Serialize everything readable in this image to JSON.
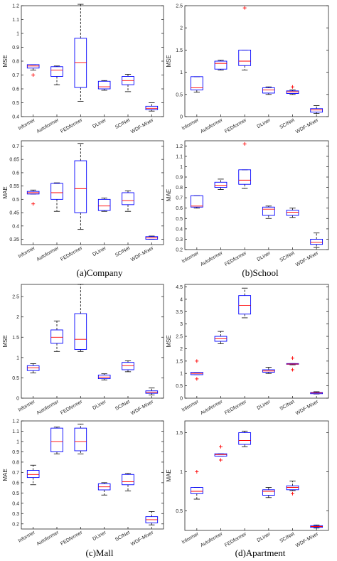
{
  "categories": [
    "Informer",
    "Autoformer",
    "FEDformer",
    "DLiner",
    "SCINet",
    "WDF-Mixer"
  ],
  "colors": {
    "box": "#0000ff",
    "median": "#ff0000",
    "whisker": "#000000",
    "outlier": "#ff0000",
    "axis": "#262626"
  },
  "captions": [
    "(a)Company",
    "(b)School",
    "(c)Mall",
    "(d)Apartment"
  ],
  "chart_data": [
    {
      "type": "box",
      "dataset": "Company",
      "ylabel": "MSE",
      "ylim": [
        0.4,
        1.2
      ],
      "yticks": [
        0.4,
        0.5,
        0.6,
        0.7,
        0.8,
        0.9,
        1,
        1.1,
        1.2
      ],
      "boxes": [
        {
          "category": "Informer",
          "whisker_low": 0.735,
          "q1": 0.75,
          "median": 0.765,
          "q3": 0.775,
          "whisker_high": 0.775,
          "outliers": [
            0.7
          ]
        },
        {
          "category": "Autoformer",
          "whisker_low": 0.63,
          "q1": 0.69,
          "median": 0.735,
          "q3": 0.76,
          "whisker_high": 0.765,
          "outliers": []
        },
        {
          "category": "FEDformer",
          "whisker_low": 0.51,
          "q1": 0.61,
          "median": 0.79,
          "q3": 0.965,
          "whisker_high": 1.21,
          "outliers": []
        },
        {
          "category": "DLiner",
          "whisker_low": 0.59,
          "q1": 0.6,
          "median": 0.615,
          "q3": 0.655,
          "whisker_high": 0.66,
          "outliers": []
        },
        {
          "category": "SCINet",
          "whisker_low": 0.58,
          "q1": 0.63,
          "median": 0.66,
          "q3": 0.69,
          "whisker_high": 0.705,
          "outliers": []
        },
        {
          "category": "WDF-Mixer",
          "whisker_low": 0.44,
          "q1": 0.45,
          "median": 0.46,
          "q3": 0.475,
          "whisker_high": 0.5,
          "outliers": []
        }
      ]
    },
    {
      "type": "box",
      "dataset": "School",
      "ylabel": "MSE",
      "ylim": [
        0,
        2.5
      ],
      "yticks": [
        0,
        0.5,
        1,
        1.5,
        2,
        2.5
      ],
      "boxes": [
        {
          "category": "Informer",
          "whisker_low": 0.55,
          "q1": 0.6,
          "median": 0.65,
          "q3": 0.9,
          "whisker_high": 0.9,
          "outliers": []
        },
        {
          "category": "Autoformer",
          "whisker_low": 1.05,
          "q1": 1.07,
          "median": 1.2,
          "q3": 1.25,
          "whisker_high": 1.27,
          "outliers": []
        },
        {
          "category": "FEDformer",
          "whisker_low": 1.05,
          "q1": 1.15,
          "median": 1.25,
          "q3": 1.5,
          "whisker_high": 1.5,
          "outliers": [
            2.45
          ]
        },
        {
          "category": "DLiner",
          "whisker_low": 0.5,
          "q1": 0.53,
          "median": 0.6,
          "q3": 0.65,
          "whisker_high": 0.67,
          "outliers": []
        },
        {
          "category": "SCINet",
          "whisker_low": 0.5,
          "q1": 0.52,
          "median": 0.56,
          "q3": 0.58,
          "whisker_high": 0.6,
          "outliers": [
            0.67
          ]
        },
        {
          "category": "WDF-Mixer",
          "whisker_low": 0.07,
          "q1": 0.1,
          "median": 0.15,
          "q3": 0.18,
          "whisker_high": 0.25,
          "outliers": []
        }
      ]
    },
    {
      "type": "box",
      "dataset": "Company",
      "ylabel": "MAE",
      "ylim": [
        0.33,
        0.72
      ],
      "yticks": [
        0.35,
        0.4,
        0.45,
        0.5,
        0.55,
        0.6,
        0.65,
        0.7
      ],
      "boxes": [
        {
          "category": "Informer",
          "whisker_low": 0.52,
          "q1": 0.52,
          "median": 0.525,
          "q3": 0.53,
          "whisker_high": 0.535,
          "outliers": [
            0.483
          ]
        },
        {
          "category": "Autoformer",
          "whisker_low": 0.455,
          "q1": 0.5,
          "median": 0.525,
          "q3": 0.56,
          "whisker_high": 0.562,
          "outliers": []
        },
        {
          "category": "FEDformer",
          "whisker_low": 0.387,
          "q1": 0.45,
          "median": 0.54,
          "q3": 0.645,
          "whisker_high": 0.71,
          "outliers": []
        },
        {
          "category": "DLiner",
          "whisker_low": 0.455,
          "q1": 0.458,
          "median": 0.475,
          "q3": 0.5,
          "whisker_high": 0.505,
          "outliers": []
        },
        {
          "category": "SCINet",
          "whisker_low": 0.455,
          "q1": 0.48,
          "median": 0.495,
          "q3": 0.525,
          "whisker_high": 0.532,
          "outliers": []
        },
        {
          "category": "WDF-Mixer",
          "whisker_low": 0.35,
          "q1": 0.35,
          "median": 0.355,
          "q3": 0.36,
          "whisker_high": 0.362,
          "outliers": []
        }
      ]
    },
    {
      "type": "box",
      "dataset": "School",
      "ylabel": "MAE",
      "ylim": [
        0.2,
        1.25
      ],
      "yticks": [
        0.2,
        0.3,
        0.4,
        0.5,
        0.6,
        0.7,
        0.8,
        0.9,
        1,
        1.1,
        1.2
      ],
      "boxes": [
        {
          "category": "Informer",
          "whisker_low": 0.6,
          "q1": 0.61,
          "median": 0.62,
          "q3": 0.72,
          "whisker_high": 0.72,
          "outliers": []
        },
        {
          "category": "Autoformer",
          "whisker_low": 0.78,
          "q1": 0.8,
          "median": 0.82,
          "q3": 0.85,
          "whisker_high": 0.88,
          "outliers": []
        },
        {
          "category": "FEDformer",
          "whisker_low": 0.79,
          "q1": 0.83,
          "median": 0.87,
          "q3": 0.97,
          "whisker_high": 0.97,
          "outliers": [
            1.22
          ]
        },
        {
          "category": "DLiner",
          "whisker_low": 0.5,
          "q1": 0.53,
          "median": 0.59,
          "q3": 0.61,
          "whisker_high": 0.62,
          "outliers": []
        },
        {
          "category": "SCINet",
          "whisker_low": 0.51,
          "q1": 0.53,
          "median": 0.56,
          "q3": 0.58,
          "whisker_high": 0.6,
          "outliers": []
        },
        {
          "category": "WDF-Mixer",
          "whisker_low": 0.22,
          "q1": 0.25,
          "median": 0.27,
          "q3": 0.3,
          "whisker_high": 0.36,
          "outliers": []
        }
      ]
    },
    {
      "type": "box",
      "dataset": "Mall",
      "ylabel": "MSE",
      "ylim": [
        0,
        2.8
      ],
      "yticks": [
        0,
        0.5,
        1,
        1.5,
        2,
        2.5
      ],
      "boxes": [
        {
          "category": "Informer",
          "whisker_low": 0.62,
          "q1": 0.68,
          "median": 0.75,
          "q3": 0.8,
          "whisker_high": 0.85,
          "outliers": []
        },
        {
          "category": "Autoformer",
          "whisker_low": 1.15,
          "q1": 1.35,
          "median": 1.5,
          "q3": 1.68,
          "whisker_high": 1.9,
          "outliers": []
        },
        {
          "category": "FEDformer",
          "whisker_low": 1.15,
          "q1": 1.2,
          "median": 1.45,
          "q3": 2.08,
          "whisker_high": 2.8,
          "outliers": []
        },
        {
          "category": "DLiner",
          "whisker_low": 0.45,
          "q1": 0.48,
          "median": 0.52,
          "q3": 0.57,
          "whisker_high": 0.6,
          "outliers": []
        },
        {
          "category": "SCINet",
          "whisker_low": 0.65,
          "q1": 0.7,
          "median": 0.8,
          "q3": 0.88,
          "whisker_high": 0.92,
          "outliers": []
        },
        {
          "category": "WDF-Mixer",
          "whisker_low": 0.08,
          "q1": 0.12,
          "median": 0.15,
          "q3": 0.18,
          "whisker_high": 0.25,
          "outliers": []
        }
      ]
    },
    {
      "type": "box",
      "dataset": "Apartment",
      "ylabel": "MSE",
      "ylim": [
        0,
        4.6
      ],
      "yticks": [
        0,
        0.5,
        1,
        1.5,
        2,
        2.5,
        3,
        3.5,
        4,
        4.5
      ],
      "boxes": [
        {
          "category": "Informer",
          "whisker_low": 0.95,
          "q1": 0.95,
          "median": 1.0,
          "q3": 1.05,
          "whisker_high": 1.05,
          "outliers": [
            1.5,
            0.78
          ]
        },
        {
          "category": "Autoformer",
          "whisker_low": 2.2,
          "q1": 2.3,
          "median": 2.4,
          "q3": 2.5,
          "whisker_high": 2.7,
          "outliers": []
        },
        {
          "category": "FEDformer",
          "whisker_low": 3.25,
          "q1": 3.4,
          "median": 3.75,
          "q3": 4.15,
          "whisker_high": 4.45,
          "outliers": []
        },
        {
          "category": "DLiner",
          "whisker_low": 1.0,
          "q1": 1.05,
          "median": 1.1,
          "q3": 1.15,
          "whisker_high": 1.25,
          "outliers": []
        },
        {
          "category": "SCINet",
          "whisker_low": 1.35,
          "q1": 1.37,
          "median": 1.38,
          "q3": 1.4,
          "whisker_high": 1.4,
          "outliers": [
            1.62,
            1.15
          ]
        },
        {
          "category": "WDF-Mixer",
          "whisker_low": 0.17,
          "q1": 0.18,
          "median": 0.21,
          "q3": 0.23,
          "whisker_high": 0.26,
          "outliers": []
        }
      ]
    },
    {
      "type": "box",
      "dataset": "Mall",
      "ylabel": "MAE",
      "ylim": [
        0.15,
        1.2
      ],
      "yticks": [
        0.2,
        0.3,
        0.4,
        0.5,
        0.6,
        0.7,
        0.8,
        0.9,
        1,
        1.1,
        1.2
      ],
      "boxes": [
        {
          "category": "Informer",
          "whisker_low": 0.58,
          "q1": 0.65,
          "median": 0.68,
          "q3": 0.72,
          "whisker_high": 0.77,
          "outliers": []
        },
        {
          "category": "Autoformer",
          "whisker_low": 0.88,
          "q1": 0.9,
          "median": 1.0,
          "q3": 1.13,
          "whisker_high": 1.14,
          "outliers": []
        },
        {
          "category": "FEDformer",
          "whisker_low": 0.88,
          "q1": 0.91,
          "median": 1.0,
          "q3": 1.13,
          "whisker_high": 1.17,
          "outliers": []
        },
        {
          "category": "DLiner",
          "whisker_low": 0.48,
          "q1": 0.53,
          "median": 0.56,
          "q3": 0.59,
          "whisker_high": 0.6,
          "outliers": []
        },
        {
          "category": "SCINet",
          "whisker_low": 0.52,
          "q1": 0.58,
          "median": 0.61,
          "q3": 0.68,
          "whisker_high": 0.69,
          "outliers": []
        },
        {
          "category": "WDF-Mixer",
          "whisker_low": 0.19,
          "q1": 0.21,
          "median": 0.24,
          "q3": 0.27,
          "whisker_high": 0.32,
          "outliers": []
        }
      ]
    },
    {
      "type": "box",
      "dataset": "Apartment",
      "ylabel": "MAE",
      "ylim": [
        0.25,
        1.65
      ],
      "yticks": [
        0.5,
        1,
        1.5
      ],
      "boxes": [
        {
          "category": "Informer",
          "whisker_low": 0.65,
          "q1": 0.72,
          "median": 0.75,
          "q3": 0.8,
          "whisker_high": 0.8,
          "outliers": [
            1.0
          ]
        },
        {
          "category": "Autoformer",
          "whisker_low": 1.2,
          "q1": 1.2,
          "median": 1.22,
          "q3": 1.23,
          "whisker_high": 1.23,
          "outliers": [
            1.32,
            1.15
          ]
        },
        {
          "category": "FEDformer",
          "whisker_low": 1.32,
          "q1": 1.35,
          "median": 1.4,
          "q3": 1.5,
          "whisker_high": 1.52,
          "outliers": []
        },
        {
          "category": "DLiner",
          "whisker_low": 0.67,
          "q1": 0.7,
          "median": 0.75,
          "q3": 0.77,
          "whisker_high": 0.8,
          "outliers": []
        },
        {
          "category": "SCINet",
          "whisker_low": 0.76,
          "q1": 0.77,
          "median": 0.8,
          "q3": 0.82,
          "whisker_high": 0.88,
          "outliers": [
            0.72
          ]
        },
        {
          "category": "WDF-Mixer",
          "whisker_low": 0.28,
          "q1": 0.29,
          "median": 0.3,
          "q3": 0.31,
          "whisker_high": 0.32,
          "outliers": []
        }
      ]
    }
  ]
}
